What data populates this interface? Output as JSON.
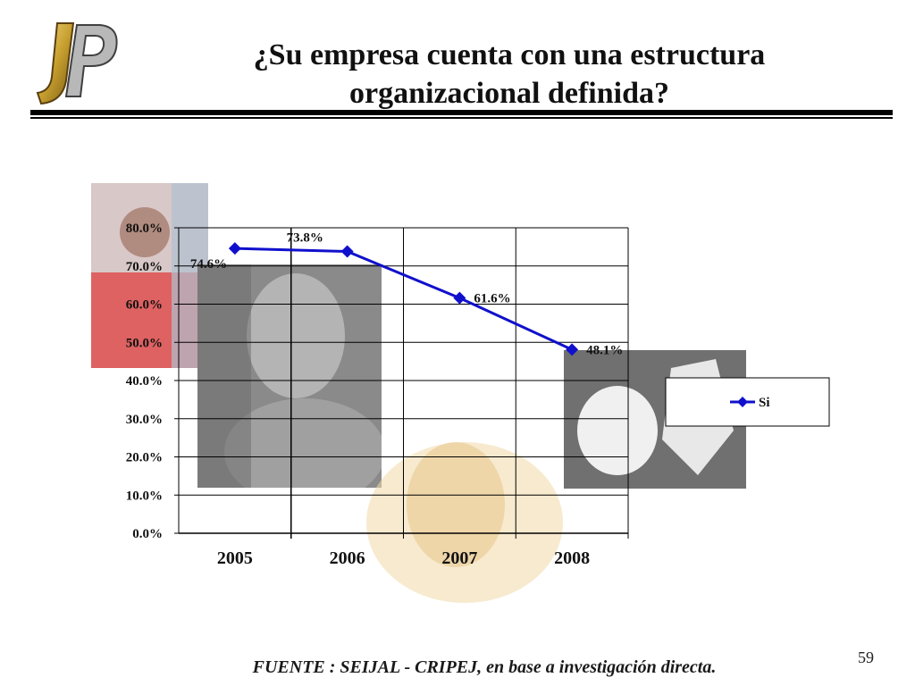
{
  "slide": {
    "title": "¿Su empresa cuenta con una estructura organizacional definida?",
    "source": "FUENTE :  SEIJAL - CRIPEJ,  en base a investigación directa.",
    "page_number": "59",
    "logo_text": "JP"
  },
  "colors": {
    "series": "#1010cc",
    "gold": "#c8a030",
    "grid": "#000000"
  },
  "chart_data": {
    "type": "line",
    "categories": [
      "2005",
      "2006",
      "2007",
      "2008"
    ],
    "series": [
      {
        "name": "Si",
        "values": [
          74.6,
          73.8,
          61.6,
          48.1
        ]
      }
    ],
    "data_labels": [
      "74.6%",
      "73.8%",
      "61.6%",
      "48.1%"
    ],
    "yticks": [
      "0.0%",
      "10.0%",
      "20.0%",
      "30.0%",
      "40.0%",
      "50.0%",
      "60.0%",
      "70.0%",
      "80.0%"
    ],
    "ylim": [
      0,
      80
    ],
    "grid": true,
    "legend": "right",
    "marker": "diamond"
  }
}
